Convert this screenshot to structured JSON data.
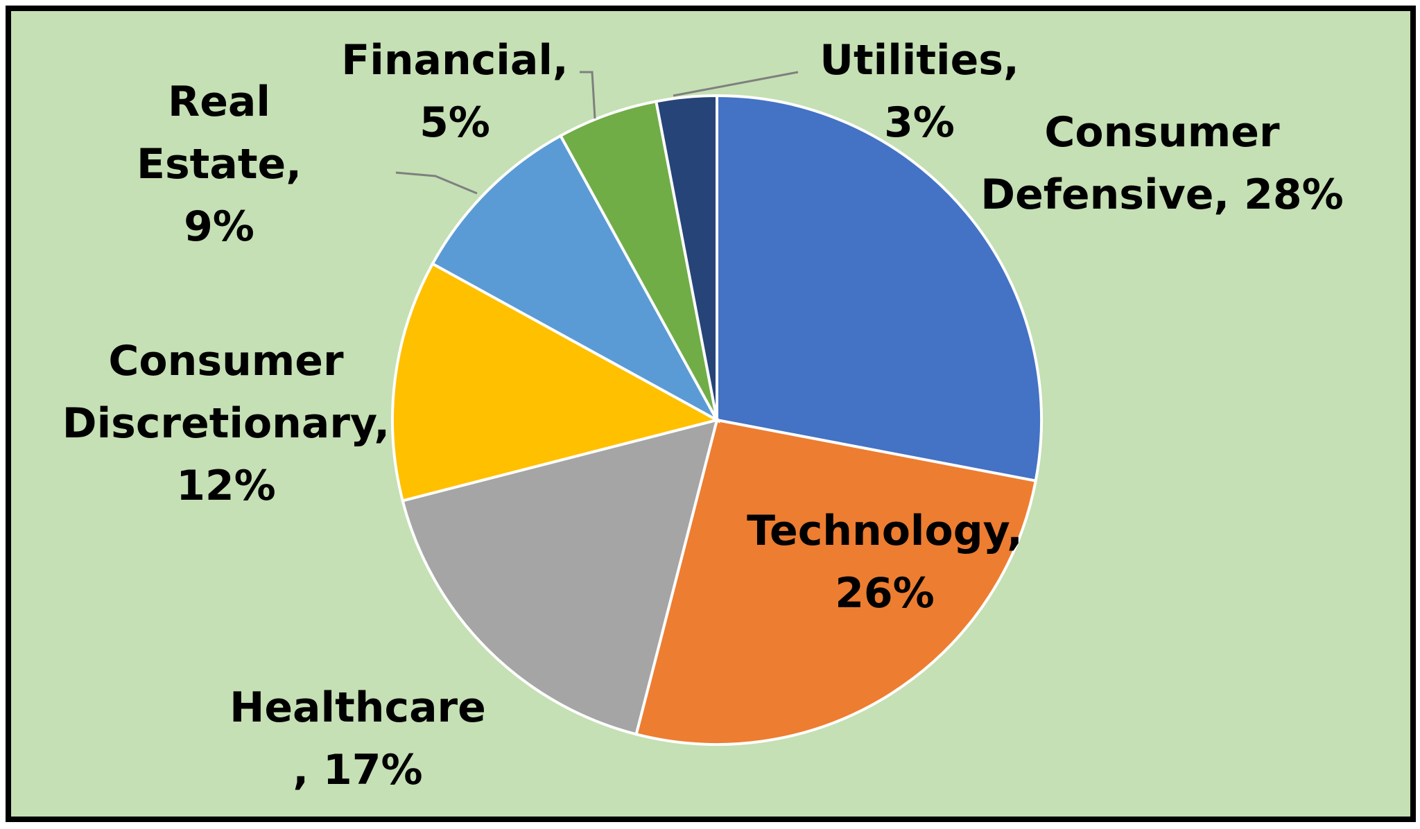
{
  "chart_data": {
    "type": "pie",
    "title": "",
    "slices": [
      {
        "category": "Consumer Defensive",
        "value": 28,
        "label_text": "Consumer\nDefensive, 28%",
        "color": "#4472c4"
      },
      {
        "category": "Technology",
        "value": 26,
        "label_text": "Technology,\n26%",
        "color": "#ed7d31"
      },
      {
        "category": "Healthcare",
        "value": 17,
        "label_text": "Healthcare\n, 17%",
        "color": "#a5a5a5"
      },
      {
        "category": "Consumer Discretionary",
        "value": 12,
        "label_text": "Consumer\nDiscretionary,\n12%",
        "color": "#ffc000"
      },
      {
        "category": "Real Estate",
        "value": 9,
        "label_text": "Real\nEstate,\n9%",
        "color": "#5b9bd5"
      },
      {
        "category": "Financial",
        "value": 5,
        "label_text": "Financial,\n5%",
        "color": "#70ad47"
      },
      {
        "category": "Utilities",
        "value": 3,
        "label_text": "Utilities,\n3%",
        "color": "#264478"
      }
    ],
    "background_color": "#c5e0b4",
    "border_color": "#000000",
    "legend": "none",
    "start_angle": "12 o'clock",
    "direction": "clockwise"
  }
}
